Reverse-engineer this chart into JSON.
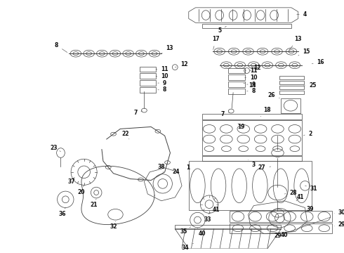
{
  "background_color": "#ffffff",
  "line_color": "#404040",
  "label_color": "#111111",
  "label_fontsize": 5.5,
  "fig_width": 4.9,
  "fig_height": 3.6,
  "dpi": 100
}
